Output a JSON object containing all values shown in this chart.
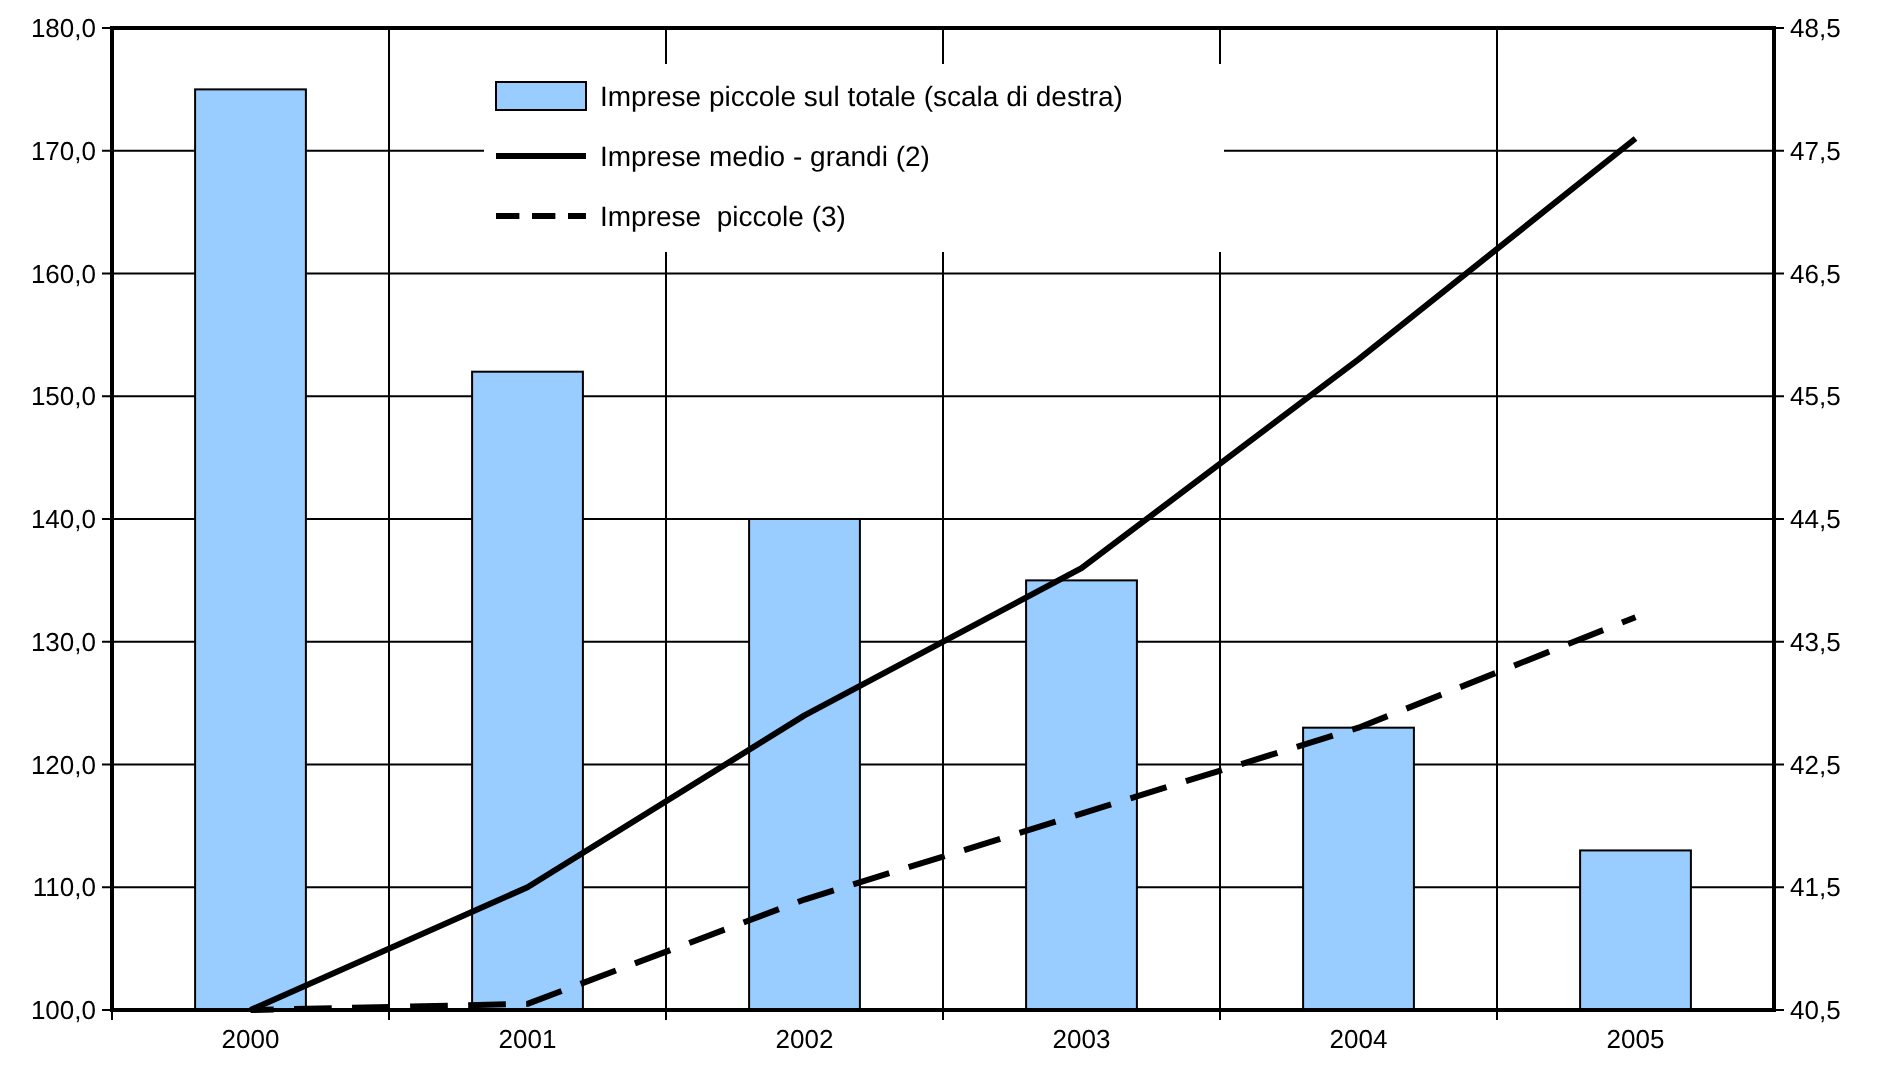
{
  "chart_data": {
    "type": "bar",
    "categories": [
      "2000",
      "2001",
      "2002",
      "2003",
      "2004",
      "2005"
    ],
    "series": [
      {
        "name": "Imprese piccole sul totale (scala di destra)",
        "type": "bar",
        "axis": "y2",
        "color": "#99ccff",
        "values": [
          48.0,
          45.7,
          44.5,
          44.0,
          42.8,
          41.8
        ]
      },
      {
        "name": "Imprese medio - grandi (2)",
        "type": "line",
        "line_style": "solid",
        "color": "#000000",
        "values": [
          100,
          110,
          124,
          136,
          153,
          171
        ]
      },
      {
        "name": "Imprese  piccole (3)",
        "type": "line",
        "line_style": "dashed",
        "color": "#000000",
        "values": [
          100,
          100.5,
          109,
          116,
          123,
          132
        ]
      }
    ],
    "ylim": [
      100,
      180
    ],
    "yticks": [
      {
        "value": 100,
        "label": "100,0"
      },
      {
        "value": 110,
        "label": "110,0"
      },
      {
        "value": 120,
        "label": "120,0"
      },
      {
        "value": 130,
        "label": "130,0"
      },
      {
        "value": 140,
        "label": "140,0"
      },
      {
        "value": 150,
        "label": "150,0"
      },
      {
        "value": 160,
        "label": "160,0"
      },
      {
        "value": 170,
        "label": "170,0"
      },
      {
        "value": 180,
        "label": "180,0"
      }
    ],
    "y2lim": [
      40.5,
      48.5
    ],
    "y2ticks": [
      {
        "value": 40.5,
        "label": "40,5"
      },
      {
        "value": 41.5,
        "label": "41,5"
      },
      {
        "value": 42.5,
        "label": "42,5"
      },
      {
        "value": 43.5,
        "label": "43,5"
      },
      {
        "value": 44.5,
        "label": "44,5"
      },
      {
        "value": 45.5,
        "label": "45,5"
      },
      {
        "value": 46.5,
        "label": "46,5"
      },
      {
        "value": 47.5,
        "label": "47,5"
      },
      {
        "value": 48.5,
        "label": "48,5"
      }
    ],
    "grid": true,
    "legend": "top",
    "marker": "none"
  }
}
